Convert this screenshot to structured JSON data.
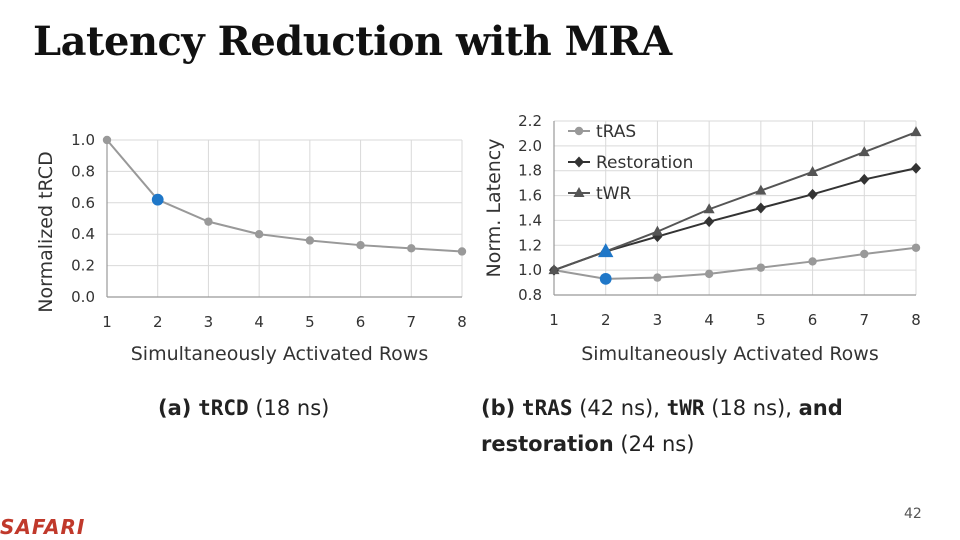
{
  "slide": {
    "title": "Latency Reduction with MRA",
    "logo": "SAFARI",
    "page_number": "42"
  },
  "captions": {
    "a": {
      "label": "(a)",
      "metric": "tRCD",
      "value": "(18 ns)"
    },
    "b": {
      "label": "(b)",
      "m1": "tRAS",
      "v1": "(42 ns),",
      "m2": "tWR",
      "v2": "(18 ns),",
      "and": "and",
      "m3": "restoration",
      "v3": "(24 ns)"
    }
  },
  "colors": {
    "grid": "#d9d9d9",
    "series_light": "#999999",
    "series_dark": "#333333",
    "series_mid": "#555555",
    "highlight": "#1f77c8"
  },
  "chart_data": [
    {
      "type": "line",
      "title": "",
      "xlabel": "Simultaneously Activated Rows",
      "ylabel": "Normalized tRCD",
      "x": [
        1,
        2,
        3,
        4,
        5,
        6,
        7,
        8
      ],
      "xlim": [
        1,
        8
      ],
      "ylim": [
        0.0,
        1.0
      ],
      "yticks": [
        "0.0",
        "0.2",
        "0.4",
        "0.6",
        "0.8",
        "1.0"
      ],
      "grid": true,
      "series": [
        {
          "values": [
            1.0,
            0.62,
            0.48,
            0.4,
            0.36,
            0.33,
            0.31,
            0.29
          ],
          "marker": "circle",
          "highlight_index": 1
        }
      ]
    },
    {
      "type": "line",
      "title": "",
      "xlabel": "Simultaneously Activated Rows",
      "ylabel": "Norm. Latency",
      "x": [
        1,
        2,
        3,
        4,
        5,
        6,
        7,
        8
      ],
      "xlim": [
        1,
        8
      ],
      "ylim": [
        0.8,
        2.2
      ],
      "yticks": [
        "0.8",
        "1.0",
        "1.2",
        "1.4",
        "1.6",
        "1.8",
        "2.0",
        "2.2"
      ],
      "grid": true,
      "legend": "top-left",
      "series": [
        {
          "name": "tRAS",
          "values": [
            1.0,
            0.93,
            0.94,
            0.97,
            1.02,
            1.07,
            1.13,
            1.18
          ],
          "marker": "circle",
          "highlight_index": 1
        },
        {
          "name": "Restoration",
          "values": [
            1.0,
            1.15,
            1.27,
            1.39,
            1.5,
            1.61,
            1.73,
            1.82
          ],
          "marker": "diamond"
        },
        {
          "name": "tWR",
          "values": [
            1.0,
            1.15,
            1.31,
            1.49,
            1.64,
            1.79,
            1.95,
            2.11
          ],
          "marker": "triangle",
          "highlight_index": 1
        }
      ]
    }
  ]
}
